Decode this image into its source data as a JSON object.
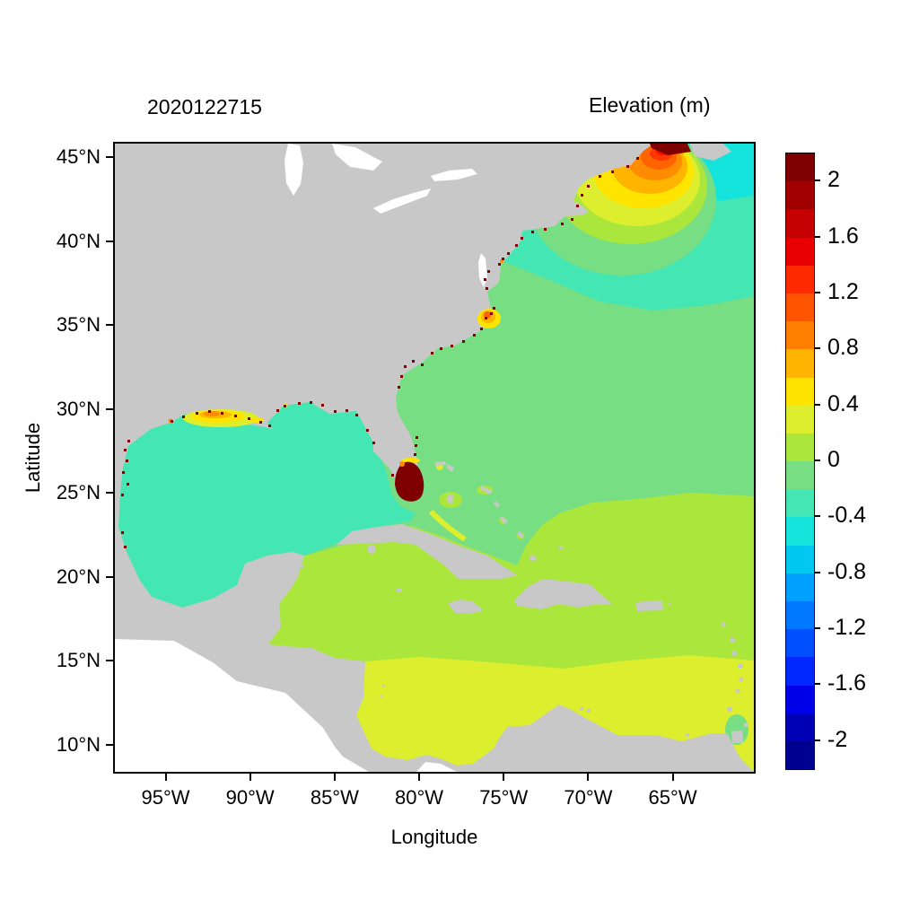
{
  "chart_data": {
    "type": "heatmap",
    "timestamp": "2020122715",
    "title": "Elevation (m)",
    "xlabel": "Longitude",
    "ylabel": "Latitude",
    "xlim": [
      -98,
      -60.2
    ],
    "ylim": [
      8.4,
      45.8
    ],
    "grid": false,
    "x_ticks": [
      {
        "value": -95,
        "label": "95°W"
      },
      {
        "value": -90,
        "label": "90°W"
      },
      {
        "value": -85,
        "label": "85°W"
      },
      {
        "value": -80,
        "label": "80°W"
      },
      {
        "value": -75,
        "label": "75°W"
      },
      {
        "value": -70,
        "label": "70°W"
      },
      {
        "value": -65,
        "label": "65°W"
      }
    ],
    "y_ticks": [
      {
        "value": 45,
        "label": "45°N"
      },
      {
        "value": 40,
        "label": "40°N"
      },
      {
        "value": 35,
        "label": "35°N"
      },
      {
        "value": 30,
        "label": "30°N"
      },
      {
        "value": 25,
        "label": "25°N"
      },
      {
        "value": 20,
        "label": "20°N"
      },
      {
        "value": 15,
        "label": "15°N"
      },
      {
        "value": 10,
        "label": "10°N"
      }
    ],
    "colorbar": {
      "min": -2.2,
      "max": 2.2,
      "step": 0.2,
      "ticks": [
        {
          "value": 2,
          "label": "2"
        },
        {
          "value": 1.6,
          "label": "1.6"
        },
        {
          "value": 1.2,
          "label": "1.2"
        },
        {
          "value": 0.8,
          "label": "0.8"
        },
        {
          "value": 0.4,
          "label": "0.4"
        },
        {
          "value": 0,
          "label": "0"
        },
        {
          "value": -0.4,
          "label": "-0.4"
        },
        {
          "value": -0.8,
          "label": "-0.8"
        },
        {
          "value": -1.2,
          "label": "-1.2"
        },
        {
          "value": -1.6,
          "label": "-1.6"
        },
        {
          "value": -2,
          "label": "-2"
        }
      ],
      "colors_top_to_bottom": [
        "#7f0000",
        "#a10000",
        "#c40000",
        "#e80000",
        "#ff2a00",
        "#ff5500",
        "#ff8000",
        "#ffb400",
        "#ffe400",
        "#dcee2e",
        "#aae63c",
        "#78de84",
        "#44e6b4",
        "#14e4dc",
        "#00c8f0",
        "#00a0ff",
        "#0078ff",
        "#0050ff",
        "#0028ff",
        "#0000e8",
        "#0000b4",
        "#000090"
      ]
    },
    "land_color": "#c8c8c8",
    "undefined_region_color": "#ffffff",
    "regions": [
      {
        "name": "Gulf of Mexico",
        "elevation_m": [
          -0.4,
          -0.2
        ]
      },
      {
        "name": "Mid-Atlantic open ocean",
        "elevation_m": [
          -0.2,
          0
        ]
      },
      {
        "name": "Northwest Atlantic north of ~37N",
        "elevation_m": [
          -0.4,
          -0.2
        ]
      },
      {
        "name": "Scotian slope / top-right corner",
        "elevation_m": [
          -0.6,
          -0.4
        ]
      },
      {
        "name": "Caribbean Sea and tropical Atlantic",
        "elevation_m": [
          0,
          0.2
        ]
      },
      {
        "name": "Southern Caribbean south of ~16N",
        "elevation_m": [
          0.2,
          0.4
        ]
      },
      {
        "name": "Gulf of Maine / Scotian Shelf surge maximum",
        "elevation_m": [
          0.8,
          2.2
        ]
      },
      {
        "name": "Bay of Fundy head",
        "elevation_m": [
          2.0,
          2.2
        ]
      },
      {
        "name": "South Florida / Florida Bay",
        "elevation_m": [
          2.0,
          2.2
        ]
      },
      {
        "name": "Pamlico Sound / Cape Hatteras spot",
        "elevation_m": [
          0.6,
          2.2
        ]
      },
      {
        "name": "Louisiana coastal marsh",
        "elevation_m": [
          0.4,
          1.0
        ]
      },
      {
        "name": "Bahama banks patches",
        "elevation_m": [
          0,
          0.4
        ]
      },
      {
        "name": "Coastal wet cells (speckles along shorelines)",
        "elevation_m": [
          2.0,
          2.2
        ]
      }
    ]
  }
}
